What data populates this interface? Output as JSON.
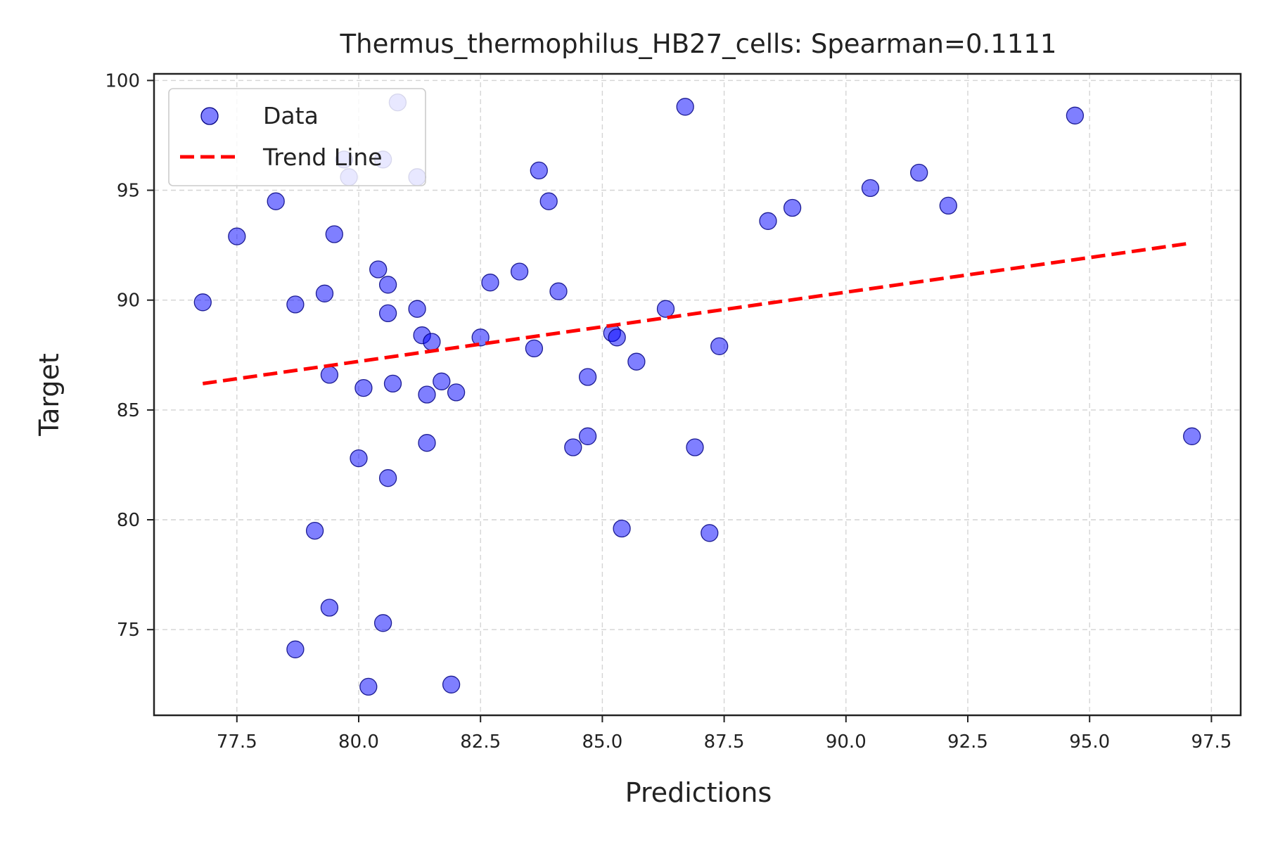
{
  "chart_data": {
    "type": "scatter",
    "title": "Thermus_thermophilus_HB27_cells: Spearman=0.1111",
    "xlabel": "Predictions",
    "ylabel": "Target",
    "xlim": [
      75.8,
      98.1
    ],
    "ylim": [
      71.1,
      100.3
    ],
    "xticks": [
      77.5,
      80.0,
      82.5,
      85.0,
      87.5,
      90.0,
      92.5,
      95.0,
      97.5
    ],
    "xtick_labels": [
      "77.5",
      "80.0",
      "82.5",
      "85.0",
      "87.5",
      "90.0",
      "92.5",
      "95.0",
      "97.5"
    ],
    "yticks": [
      75,
      80,
      85,
      90,
      95,
      100
    ],
    "ytick_labels": [
      "75",
      "80",
      "85",
      "90",
      "95",
      "100"
    ],
    "grid": true,
    "legend": {
      "placement": "top-left",
      "entries": [
        "Data",
        "Trend Line"
      ]
    },
    "series": [
      {
        "name": "Data",
        "type": "scatter",
        "color": "#0000ff",
        "points": [
          [
            76.8,
            89.9
          ],
          [
            77.5,
            92.9
          ],
          [
            78.3,
            94.5
          ],
          [
            78.7,
            89.8
          ],
          [
            78.7,
            74.1
          ],
          [
            79.1,
            79.5
          ],
          [
            79.3,
            90.3
          ],
          [
            79.4,
            86.6
          ],
          [
            79.4,
            76.0
          ],
          [
            79.5,
            93.0
          ],
          [
            79.7,
            96.4
          ],
          [
            79.8,
            95.6
          ],
          [
            80.0,
            82.8
          ],
          [
            80.1,
            86.0
          ],
          [
            80.2,
            72.4
          ],
          [
            80.4,
            91.4
          ],
          [
            80.5,
            75.3
          ],
          [
            80.5,
            96.4
          ],
          [
            80.6,
            89.4
          ],
          [
            80.6,
            81.9
          ],
          [
            80.6,
            90.7
          ],
          [
            80.7,
            86.2
          ],
          [
            80.8,
            99.0
          ],
          [
            81.2,
            95.6
          ],
          [
            81.2,
            89.6
          ],
          [
            81.3,
            88.4
          ],
          [
            81.4,
            85.7
          ],
          [
            81.4,
            83.5
          ],
          [
            81.5,
            88.1
          ],
          [
            81.7,
            86.3
          ],
          [
            81.9,
            72.5
          ],
          [
            82.0,
            85.8
          ],
          [
            82.5,
            88.3
          ],
          [
            82.7,
            90.8
          ],
          [
            83.3,
            91.3
          ],
          [
            83.6,
            87.8
          ],
          [
            83.7,
            95.9
          ],
          [
            83.9,
            94.5
          ],
          [
            84.1,
            90.4
          ],
          [
            84.4,
            83.3
          ],
          [
            84.7,
            83.8
          ],
          [
            84.7,
            86.5
          ],
          [
            85.2,
            88.5
          ],
          [
            85.3,
            88.3
          ],
          [
            85.4,
            79.6
          ],
          [
            85.7,
            87.2
          ],
          [
            86.3,
            89.6
          ],
          [
            86.7,
            98.8
          ],
          [
            86.9,
            83.3
          ],
          [
            87.2,
            79.4
          ],
          [
            87.4,
            87.9
          ],
          [
            88.4,
            93.6
          ],
          [
            88.9,
            94.2
          ],
          [
            90.5,
            95.1
          ],
          [
            91.5,
            95.8
          ],
          [
            92.1,
            94.3
          ],
          [
            94.7,
            98.4
          ],
          [
            97.1,
            83.8
          ]
        ]
      },
      {
        "name": "Trend Line",
        "type": "line",
        "color": "#ff0000",
        "style": "dashed",
        "x": [
          76.8,
          97.1
        ],
        "y": [
          86.2,
          92.6
        ]
      }
    ]
  }
}
